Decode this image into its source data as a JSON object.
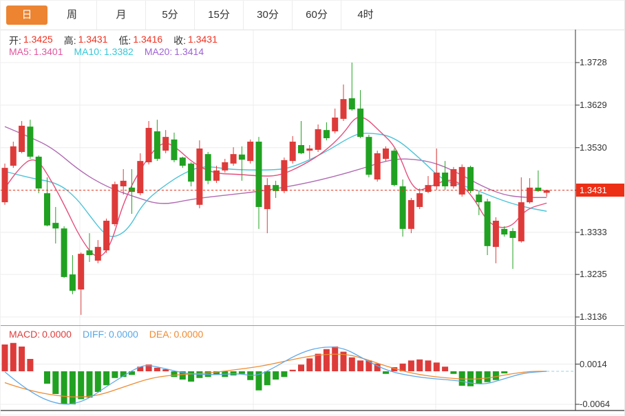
{
  "tabs": [
    {
      "key": "day",
      "label": "日",
      "active": true
    },
    {
      "key": "week",
      "label": "周",
      "active": false
    },
    {
      "key": "month",
      "label": "月",
      "active": false
    },
    {
      "key": "5min",
      "label": "5分",
      "active": false
    },
    {
      "key": "15min",
      "label": "15分",
      "active": false
    },
    {
      "key": "30min",
      "label": "30分",
      "active": false
    },
    {
      "key": "60min",
      "label": "60分",
      "active": false
    },
    {
      "key": "4hour",
      "label": "4时",
      "active": false
    }
  ],
  "ohlc_bar": {
    "open_label": "开:",
    "open": "1.3425",
    "high_label": "高:",
    "high": "1.3431",
    "low_label": "低:",
    "low": "1.3416",
    "close_label": "收:",
    "close": "1.3431"
  },
  "ma_bar": {
    "ma5_label": "MA5:",
    "ma5": "1.3401",
    "ma10_label": "MA10:",
    "ma10": "1.3382",
    "ma20_label": "MA20:",
    "ma20": "1.3414"
  },
  "macd_bar": {
    "macd_label": "MACD:",
    "macd": "0.0000",
    "diff_label": "DIFF:",
    "diff": "0.0000",
    "dea_label": "DEA:",
    "dea": "0.0000"
  },
  "colors": {
    "up": "#dd3b3a",
    "down": "#21a121",
    "ma5": "#e54d7c",
    "ma10": "#4cc3d9",
    "ma20": "#b06ab3",
    "diff": "#5fa8e8",
    "dea": "#ef8b30",
    "tab_accent": "#ec8432",
    "price_tag": "#ed2f16",
    "grid": "#ececec"
  },
  "chart_data": {
    "type": "candlestick",
    "title": "",
    "price_axis_labels": [
      "1.3728",
      "1.3629",
      "1.3530",
      "1.3431",
      "1.3333",
      "1.3235",
      "1.3136"
    ],
    "current_price": "1.3431",
    "macd_axis_labels": [
      "0.0014",
      "-0.0064"
    ],
    "candles": [
      [
        1.3403,
        1.3493,
        1.3397,
        1.3483
      ],
      [
        1.3488,
        1.3544,
        1.3483,
        1.3533
      ],
      [
        1.352,
        1.3592,
        1.3517,
        1.3581
      ],
      [
        1.3579,
        1.3595,
        1.3504,
        1.3509
      ],
      [
        1.3509,
        1.3512,
        1.3424,
        1.3435
      ],
      [
        1.3424,
        1.3461,
        1.3347,
        1.3349
      ],
      [
        1.3355,
        1.3392,
        1.3307,
        1.3342
      ],
      [
        1.3342,
        1.3347,
        1.3227,
        1.3229
      ],
      [
        1.3235,
        1.328,
        1.3189,
        1.3197
      ],
      [
        1.32,
        1.3286,
        1.3141,
        1.3283
      ],
      [
        1.3291,
        1.3331,
        1.3264,
        1.328
      ],
      [
        1.3267,
        1.3315,
        1.3261,
        1.3299
      ],
      [
        1.3291,
        1.3365,
        1.3285,
        1.336
      ],
      [
        1.3352,
        1.3451,
        1.3347,
        1.3445
      ],
      [
        1.344,
        1.348,
        1.3421,
        1.3453
      ],
      [
        1.3437,
        1.348,
        1.3376,
        1.3427
      ],
      [
        1.3424,
        1.3517,
        1.3419,
        1.3499
      ],
      [
        1.3496,
        1.3592,
        1.3491,
        1.3576
      ],
      [
        1.3568,
        1.3595,
        1.3499,
        1.3504
      ],
      [
        1.3523,
        1.3571,
        1.3517,
        1.3555
      ],
      [
        1.3549,
        1.3565,
        1.3496,
        1.3501
      ],
      [
        1.3507,
        1.3509,
        1.3483,
        1.3488
      ],
      [
        1.3493,
        1.3496,
        1.344,
        1.3451
      ],
      [
        1.3397,
        1.3547,
        1.3389,
        1.3528
      ],
      [
        1.3515,
        1.352,
        1.3445,
        1.3453
      ],
      [
        1.3453,
        1.3488,
        1.3448,
        1.3477
      ],
      [
        1.3477,
        1.3504,
        1.3472,
        1.3496
      ],
      [
        1.3493,
        1.3531,
        1.3488,
        1.3515
      ],
      [
        1.3514,
        1.3533,
        1.3453,
        1.3502
      ],
      [
        1.3499,
        1.3549,
        1.3493,
        1.3544
      ],
      [
        1.3544,
        1.3555,
        1.3341,
        1.3392
      ],
      [
        1.3387,
        1.3459,
        1.3331,
        1.3443
      ],
      [
        1.3443,
        1.3453,
        1.3413,
        1.3429
      ],
      [
        1.3429,
        1.3507,
        1.3424,
        1.3501
      ],
      [
        1.3499,
        1.3557,
        1.3493,
        1.3544
      ],
      [
        1.3536,
        1.3592,
        1.3515,
        1.3517
      ],
      [
        1.3523,
        1.3536,
        1.3504,
        1.3528
      ],
      [
        1.3525,
        1.3584,
        1.352,
        1.3573
      ],
      [
        1.3571,
        1.3589,
        1.3547,
        1.3552
      ],
      [
        1.3568,
        1.3621,
        1.3563,
        1.36
      ],
      [
        1.3597,
        1.3677,
        1.3592,
        1.3643
      ],
      [
        1.3645,
        1.3728,
        1.3616,
        1.3619
      ],
      [
        1.3621,
        1.3664,
        1.3552,
        1.3555
      ],
      [
        1.3555,
        1.356,
        1.3461,
        1.3467
      ],
      [
        1.3456,
        1.3523,
        1.3451,
        1.3517
      ],
      [
        1.3504,
        1.3533,
        1.3499,
        1.3528
      ],
      [
        1.3523,
        1.3528,
        1.344,
        1.3443
      ],
      [
        1.344,
        1.3456,
        1.3323,
        1.3341
      ],
      [
        1.3341,
        1.3413,
        1.3331,
        1.3408
      ],
      [
        1.3392,
        1.3435,
        1.3387,
        1.3424
      ],
      [
        1.3427,
        1.3464,
        1.3424,
        1.3443
      ],
      [
        1.344,
        1.3528,
        1.3432,
        1.3472
      ],
      [
        1.3472,
        1.3499,
        1.3432,
        1.344
      ],
      [
        1.344,
        1.3485,
        1.3435,
        1.348
      ],
      [
        1.3421,
        1.3491,
        1.3416,
        1.3485
      ],
      [
        1.3485,
        1.3488,
        1.3424,
        1.3429
      ],
      [
        1.3421,
        1.3427,
        1.3373,
        1.3403
      ],
      [
        1.3405,
        1.3411,
        1.328,
        1.3301
      ],
      [
        1.3299,
        1.3368,
        1.3261,
        1.336
      ],
      [
        1.3341,
        1.3347,
        1.3323,
        1.3328
      ],
      [
        1.3336,
        1.3343,
        1.3248,
        1.332
      ],
      [
        1.3312,
        1.3461,
        1.3309,
        1.3403
      ],
      [
        1.3403,
        1.3459,
        1.34,
        1.3437
      ],
      [
        1.3437,
        1.3477,
        1.3427,
        1.3429
      ],
      [
        1.3425,
        1.3431,
        1.3416,
        1.3431
      ]
    ],
    "ma5": [
      [
        0,
        1.3435
      ],
      [
        1.5,
        1.348
      ],
      [
        3.6,
        1.3512
      ],
      [
        5.6,
        1.345
      ],
      [
        7.2,
        1.339
      ],
      [
        8.9,
        1.332
      ],
      [
        10.9,
        1.3267
      ],
      [
        12.5,
        1.33
      ],
      [
        14.1,
        1.341
      ],
      [
        16.6,
        1.35
      ],
      [
        18.6,
        1.3545
      ],
      [
        20.1,
        1.3533
      ],
      [
        22.3,
        1.3493
      ],
      [
        24.7,
        1.347
      ],
      [
        27.6,
        1.3468
      ],
      [
        30,
        1.3464
      ],
      [
        32.4,
        1.3464
      ],
      [
        35.3,
        1.349
      ],
      [
        37.7,
        1.352
      ],
      [
        39.9,
        1.356
      ],
      [
        41.4,
        1.3602
      ],
      [
        42.6,
        1.36
      ],
      [
        44.2,
        1.357
      ],
      [
        46.3,
        1.353
      ],
      [
        48.3,
        1.3425
      ],
      [
        50.3,
        1.344
      ],
      [
        52.9,
        1.3461
      ],
      [
        55.2,
        1.342
      ],
      [
        57.2,
        1.3349
      ],
      [
        59.7,
        1.3341
      ],
      [
        61.5,
        1.3387
      ],
      [
        64,
        1.3401
      ]
    ],
    "ma10": [
      [
        0,
        1.3475
      ],
      [
        2.8,
        1.346
      ],
      [
        6.3,
        1.3448
      ],
      [
        8.5,
        1.3412
      ],
      [
        10.1,
        1.337
      ],
      [
        11.7,
        1.333
      ],
      [
        12.9,
        1.332
      ],
      [
        14.6,
        1.334
      ],
      [
        16.3,
        1.34
      ],
      [
        18.5,
        1.3437
      ],
      [
        21.2,
        1.3472
      ],
      [
        23.5,
        1.3488
      ],
      [
        26.3,
        1.348
      ],
      [
        28.8,
        1.3478
      ],
      [
        31.5,
        1.3478
      ],
      [
        33.7,
        1.3482
      ],
      [
        37.5,
        1.3515
      ],
      [
        41.2,
        1.356
      ],
      [
        42.8,
        1.3565
      ],
      [
        45.9,
        1.3557
      ],
      [
        49.1,
        1.3504
      ],
      [
        51.8,
        1.3452
      ],
      [
        54.6,
        1.344
      ],
      [
        58.6,
        1.3408
      ],
      [
        61.3,
        1.3392
      ],
      [
        64,
        1.3382
      ]
    ],
    "ma20": [
      [
        0,
        1.3579
      ],
      [
        2.8,
        1.3556
      ],
      [
        5.6,
        1.353
      ],
      [
        8.9,
        1.3475
      ],
      [
        12.1,
        1.3438
      ],
      [
        15.4,
        1.3415
      ],
      [
        18.5,
        1.3396
      ],
      [
        22.3,
        1.3411
      ],
      [
        26.3,
        1.342
      ],
      [
        30.4,
        1.3429
      ],
      [
        35.9,
        1.3448
      ],
      [
        41.2,
        1.3475
      ],
      [
        45.9,
        1.3505
      ],
      [
        49.1,
        1.3502
      ],
      [
        51.5,
        1.349
      ],
      [
        54,
        1.3466
      ],
      [
        56.4,
        1.344
      ],
      [
        58.9,
        1.342
      ],
      [
        61.3,
        1.3414
      ],
      [
        64,
        1.3414
      ]
    ],
    "macd_histogram": [
      0.0052,
      0.0055,
      0.0048,
      0.0024,
      0,
      -0.0024,
      -0.0044,
      -0.0063,
      -0.0064,
      -0.0054,
      -0.0051,
      -0.004,
      -0.0027,
      -0.0013,
      -0.0011,
      -0.0007,
      0.0009,
      0.0013,
      0.0007,
      0.0004,
      -0.0011,
      -0.0016,
      -0.002,
      -0.0013,
      -0.0011,
      -0.0007,
      -0.0011,
      -0.0008,
      -0.0005,
      -0.0017,
      -0.0037,
      -0.0027,
      -0.0016,
      -0.0011,
      0.0003,
      0.0013,
      0.0025,
      0.0034,
      0.0043,
      0.0048,
      0.0038,
      0.0027,
      0.0021,
      0.0021,
      0.0015,
      -0.0005,
      0.0008,
      0.0015,
      0.0021,
      0.0023,
      0.0021,
      0.0017,
      0.0009,
      -0.0005,
      -0.0028,
      -0.0029,
      -0.0024,
      -0.0021,
      -0.0017,
      -0.0004,
      0,
      0,
      0,
      0,
      0
    ],
    "diff_line": [
      [
        0,
        -0.0001
      ],
      [
        2.8,
        -0.004
      ],
      [
        6.4,
        -0.0066
      ],
      [
        9.3,
        -0.006
      ],
      [
        12.5,
        -0.0024
      ],
      [
        15.8,
        0.0009
      ],
      [
        17,
        0.0012
      ],
      [
        19,
        0.0005
      ],
      [
        21.5,
        -0.0005
      ],
      [
        24.7,
        -0.0007
      ],
      [
        27.6,
        -0.0004
      ],
      [
        29.6,
        -0.001
      ],
      [
        31.6,
        0.0005
      ],
      [
        34.5,
        0.0033
      ],
      [
        37.1,
        0.0047
      ],
      [
        39.9,
        0.0047
      ],
      [
        42.6,
        0.0022
      ],
      [
        45.3,
        0
      ],
      [
        48.3,
        -0.001
      ],
      [
        51,
        -0.0015
      ],
      [
        53.6,
        -0.0018
      ],
      [
        56.4,
        -0.0027
      ],
      [
        58.9,
        -0.0015
      ],
      [
        61.3,
        -0.0003
      ],
      [
        64,
        0
      ]
    ],
    "dea_line": [
      [
        0,
        -0.0022
      ],
      [
        2.8,
        -0.0038
      ],
      [
        7.6,
        -0.0051
      ],
      [
        10.9,
        -0.0048
      ],
      [
        14.1,
        -0.003
      ],
      [
        17.4,
        -0.0012
      ],
      [
        20.7,
        -0.0006
      ],
      [
        23.9,
        -0.0004
      ],
      [
        27.2,
        0.0003
      ],
      [
        30.4,
        0.001
      ],
      [
        33.7,
        0.0022
      ],
      [
        36.9,
        0.0032
      ],
      [
        40.2,
        0.0034
      ],
      [
        42.6,
        0.0024
      ],
      [
        45,
        0.001
      ],
      [
        48.3,
        -0.0005
      ],
      [
        51.5,
        -0.0012
      ],
      [
        54.8,
        -0.0016
      ],
      [
        57.2,
        -0.0013
      ],
      [
        59.7,
        -0.0005
      ],
      [
        62.1,
        0
      ],
      [
        64,
        0
      ]
    ]
  }
}
